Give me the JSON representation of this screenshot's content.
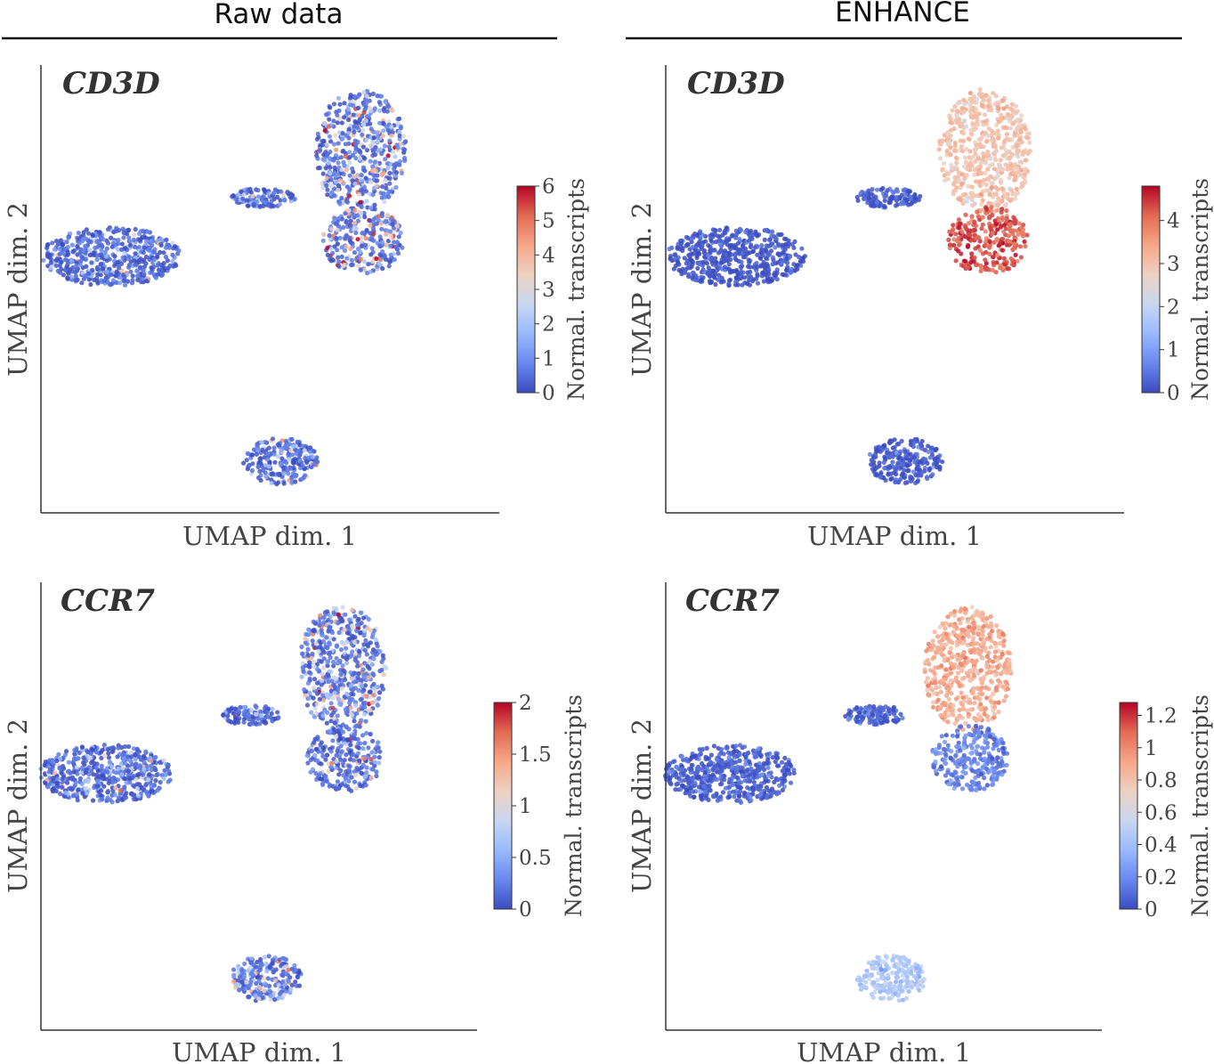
{
  "column_titles": [
    "Raw data",
    "ENHANCE"
  ],
  "colormap": [
    "#3b4cc0",
    "#6788ee",
    "#9abbff",
    "#c9d7f0",
    "#edd1c2",
    "#f7a889",
    "#e26952",
    "#b40426"
  ],
  "chart_data": [
    {
      "type": "scatter",
      "column": "Raw data",
      "gene": "CD3D",
      "xlabel": "UMAP dim. 1",
      "ylabel": "UMAP dim. 2",
      "colorbar_label": "Normal. transcripts",
      "colorbar_range": [
        0,
        6
      ],
      "colorbar_ticks": [
        "0",
        "1",
        "2",
        "3",
        "4",
        "5",
        "6"
      ],
      "clusters": [
        {
          "name": "upper-right group",
          "mean_expression": 2.3,
          "noisy": true
        },
        {
          "name": "lower-right lobe",
          "mean_expression": 3.0,
          "noisy": true
        },
        {
          "name": "left group",
          "mean_expression": 0.1,
          "noisy": true
        },
        {
          "name": "small arm",
          "mean_expression": 0.15,
          "noisy": true
        },
        {
          "name": "bottom group",
          "mean_expression": 0.2,
          "noisy": true
        }
      ]
    },
    {
      "type": "scatter",
      "column": "ENHANCE",
      "gene": "CD3D",
      "xlabel": "UMAP dim. 1",
      "ylabel": "UMAP dim. 2",
      "colorbar_label": "Normal. transcripts",
      "colorbar_range": [
        0,
        4.8
      ],
      "colorbar_ticks": [
        "0",
        "1",
        "2",
        "3",
        "4"
      ],
      "clusters": [
        {
          "name": "upper-right group",
          "mean_expression": 3.0,
          "noisy": false
        },
        {
          "name": "lower-right lobe",
          "mean_expression": 4.3,
          "noisy": false
        },
        {
          "name": "left group",
          "mean_expression": 0.05,
          "noisy": false
        },
        {
          "name": "small arm",
          "mean_expression": 0.1,
          "noisy": false
        },
        {
          "name": "bottom group",
          "mean_expression": 0.05,
          "noisy": false
        }
      ]
    },
    {
      "type": "scatter",
      "column": "Raw data",
      "gene": "CCR7",
      "xlabel": "UMAP dim. 1",
      "ylabel": "UMAP dim. 2",
      "colorbar_label": "Normal. transcripts",
      "colorbar_range": [
        0,
        2
      ],
      "colorbar_ticks": [
        "0",
        "0.5",
        "1",
        "1.5",
        "2"
      ],
      "clusters": [
        {
          "name": "upper-right group",
          "mean_expression": 0.6,
          "noisy": true
        },
        {
          "name": "lower-right lobe",
          "mean_expression": 0.3,
          "noisy": true
        },
        {
          "name": "left group",
          "mean_expression": 0.1,
          "noisy": true
        },
        {
          "name": "small arm",
          "mean_expression": 0.1,
          "noisy": true
        },
        {
          "name": "bottom group",
          "mean_expression": 0.6,
          "noisy": true
        }
      ]
    },
    {
      "type": "scatter",
      "column": "ENHANCE",
      "gene": "CCR7",
      "xlabel": "UMAP dim. 1",
      "ylabel": "UMAP dim. 2",
      "colorbar_label": "Normal. transcripts",
      "colorbar_range": [
        0,
        1.28
      ],
      "colorbar_ticks": [
        "0",
        "0.2",
        "0.4",
        "0.6",
        "0.8",
        "1",
        "1.2"
      ],
      "clusters": [
        {
          "name": "upper-right group",
          "mean_expression": 0.9,
          "noisy": false
        },
        {
          "name": "lower-right lobe",
          "mean_expression": 0.15,
          "noisy": false
        },
        {
          "name": "left group",
          "mean_expression": 0.05,
          "noisy": false
        },
        {
          "name": "small arm",
          "mean_expression": 0.05,
          "noisy": false
        },
        {
          "name": "bottom group",
          "mean_expression": 0.45,
          "noisy": false
        }
      ]
    }
  ]
}
